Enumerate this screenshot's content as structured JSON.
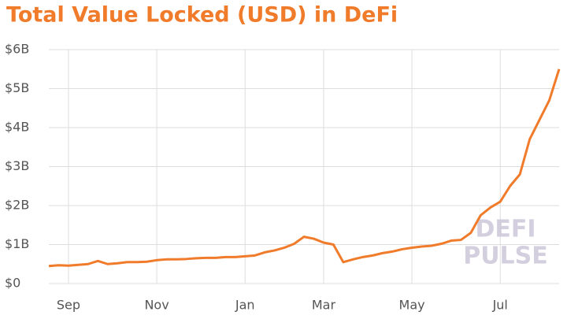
{
  "chart_data": {
    "type": "line",
    "title": "Total Value Locked (USD) in DeFi",
    "watermark": [
      "DEFI",
      "PULSE"
    ],
    "categories": [
      null,
      null,
      "Sep",
      null,
      null,
      null,
      null,
      null,
      null,
      null,
      null,
      "Nov",
      null,
      null,
      null,
      null,
      null,
      null,
      null,
      null,
      "Jan",
      null,
      null,
      null,
      null,
      null,
      null,
      null,
      "Mar",
      null,
      null,
      null,
      null,
      null,
      null,
      null,
      null,
      "May",
      null,
      null,
      null,
      null,
      null,
      null,
      null,
      null,
      "Jul",
      null,
      null,
      null,
      null,
      null,
      null
    ],
    "series": [
      {
        "name": "Total Value Locked",
        "color": "#f07b2a",
        "values": [
          0.45,
          0.47,
          0.46,
          0.48,
          0.5,
          0.58,
          0.5,
          0.52,
          0.55,
          0.55,
          0.56,
          0.6,
          0.62,
          0.62,
          0.63,
          0.65,
          0.66,
          0.66,
          0.68,
          0.68,
          0.7,
          0.72,
          0.8,
          0.85,
          0.92,
          1.02,
          1.2,
          1.15,
          1.05,
          1.0,
          0.55,
          0.62,
          0.68,
          0.72,
          0.78,
          0.82,
          0.88,
          0.92,
          0.95,
          0.97,
          1.02,
          1.1,
          1.12,
          1.3,
          1.75,
          1.95,
          2.1,
          2.5,
          2.8,
          3.7,
          4.2,
          4.7,
          5.5
        ]
      }
    ],
    "ylim": [
      0,
      6
    ],
    "yticks": [
      {
        "value": 0,
        "label": "$0"
      },
      {
        "value": 1,
        "label": "$1B"
      },
      {
        "value": 2,
        "label": "$2B"
      },
      {
        "value": 3,
        "label": "$3B"
      },
      {
        "value": 4,
        "label": "$4B"
      },
      {
        "value": 5,
        "label": "$5B"
      },
      {
        "value": 6,
        "label": "$6B"
      }
    ],
    "grid": true
  }
}
